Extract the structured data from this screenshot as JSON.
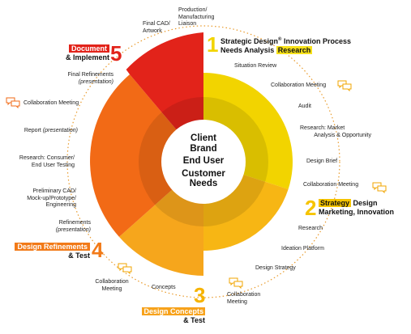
{
  "center": {
    "line1": "Client",
    "line2": "Brand",
    "line3": "End User",
    "line4": "Customer",
    "line5": "Needs"
  },
  "phases": [
    {
      "number": "1",
      "title_a": "Strategic Design",
      "title_sup": "®",
      "title_b": " Innovation Process",
      "subtitle": "Needs Analysis ",
      "highlight": "Research",
      "color": "#f2d400"
    },
    {
      "number": "2",
      "highlight": "Strategy",
      "title_a": " Design",
      "subtitle": "Marketing, Innovation",
      "color": "#f6c400"
    },
    {
      "number": "3",
      "highlight": "Design Concepts",
      "subtitle": "& Test",
      "color": "#f6b300"
    },
    {
      "number": "4",
      "highlight": "Design Refinements",
      "subtitle": "& Test",
      "color": "#f27a18"
    },
    {
      "number": "5",
      "highlight": "Document",
      "subtitle": "& Implement",
      "color": "#e2231a"
    }
  ],
  "labels": {
    "situation_review": "Situation Review",
    "collab_1": "Collaboration Meeting",
    "audit": "Audit",
    "research_market_1": "Research: Market",
    "research_market_2": "Analysis & Opportunity",
    "design_brief": "Design Brief",
    "collab_2": "Collaboration Meeting",
    "research": "Research",
    "ideation": "Ideation Platform",
    "design_strategy": "Design Strategy",
    "collab_3_a": "Collaboration",
    "collab_3_b": "Meeting",
    "concepts": "Concepts",
    "collab_4_a": "Collaboration",
    "collab_4_b": "Meeting",
    "refinements_a": "Refinements",
    "refinements_b": "(presentation)",
    "prelim_a": "Preliminary CAD/",
    "prelim_b": "Mock-up/Prototype/",
    "prelim_c": "Engineering",
    "research_consumer_a": "Research: Consumer/",
    "research_consumer_b": "End User Testing",
    "report_a": "Report ",
    "report_b": "(presentation)",
    "collab_5": "Collaboration Meeting",
    "final_ref_a": "Final Refinements",
    "final_ref_b": "(presentation)",
    "final_cad_a": "Final CAD/",
    "final_cad_b": "Artwork",
    "production_a": "Production/",
    "production_b": "Manufacturing",
    "production_c": "Liaison"
  },
  "colors": {
    "yellow": "#f2d400",
    "gold": "#f6c400",
    "amber": "#f6a91a",
    "orange": "#f26a16",
    "red": "#e2231a",
    "dotted": "#e99a2a"
  }
}
